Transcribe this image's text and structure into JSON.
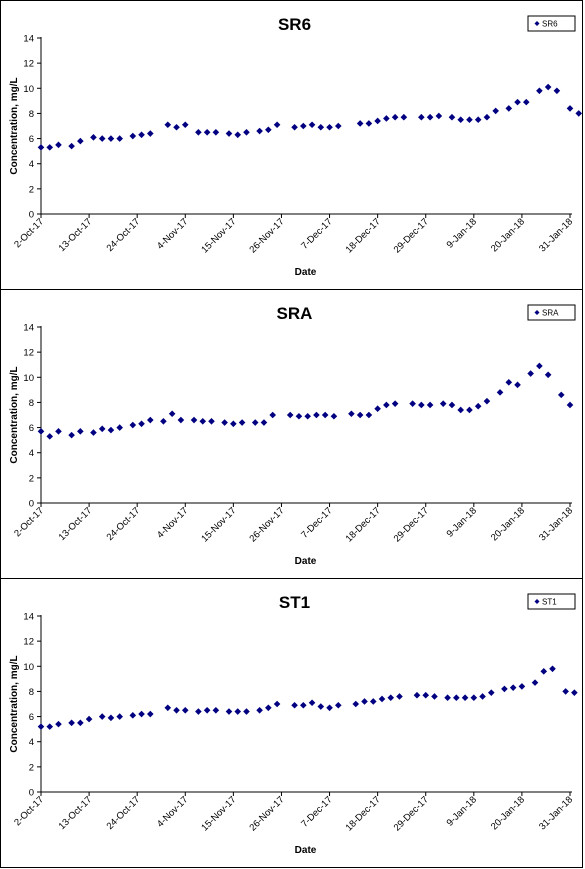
{
  "chart_data": [
    {
      "type": "scatter",
      "title": "SR6",
      "xlabel": "Date",
      "ylabel": "Concentration, mg/L",
      "ylim": [
        0,
        14
      ],
      "yticks": [
        0,
        2,
        4,
        6,
        8,
        10,
        12,
        14
      ],
      "xlim": [
        "2017-10-02",
        "2018-01-31"
      ],
      "xticks": [
        "2-Oct-17",
        "13-Oct-17",
        "24-Oct-17",
        "4-Nov-17",
        "15-Nov-17",
        "26-Nov-17",
        "7-Dec-17",
        "18-Dec-17",
        "29-Dec-17",
        "9-Jan-18",
        "20-Jan-18",
        "31-Jan-18"
      ],
      "grid": false,
      "legend": "top-right",
      "marker": "diamond",
      "color": "#000080",
      "series": [
        {
          "name": "SR6",
          "points": [
            [
              "2017-10-02",
              5.3
            ],
            [
              "2017-10-04",
              5.3
            ],
            [
              "2017-10-06",
              5.5
            ],
            [
              "2017-10-09",
              5.4
            ],
            [
              "2017-10-11",
              5.8
            ],
            [
              "2017-10-14",
              6.1
            ],
            [
              "2017-10-16",
              6.0
            ],
            [
              "2017-10-18",
              6.0
            ],
            [
              "2017-10-20",
              6.0
            ],
            [
              "2017-10-23",
              6.2
            ],
            [
              "2017-10-25",
              6.3
            ],
            [
              "2017-10-27",
              6.4
            ],
            [
              "2017-10-31",
              7.1
            ],
            [
              "2017-11-02",
              6.9
            ],
            [
              "2017-11-04",
              7.1
            ],
            [
              "2017-11-07",
              6.5
            ],
            [
              "2017-11-09",
              6.5
            ],
            [
              "2017-11-11",
              6.5
            ],
            [
              "2017-11-14",
              6.4
            ],
            [
              "2017-11-16",
              6.3
            ],
            [
              "2017-11-18",
              6.5
            ],
            [
              "2017-11-21",
              6.6
            ],
            [
              "2017-11-23",
              6.7
            ],
            [
              "2017-11-25",
              7.1
            ],
            [
              "2017-11-29",
              6.9
            ],
            [
              "2017-12-01",
              7.0
            ],
            [
              "2017-12-03",
              7.1
            ],
            [
              "2017-12-05",
              6.9
            ],
            [
              "2017-12-07",
              6.9
            ],
            [
              "2017-12-09",
              7.0
            ],
            [
              "2017-12-14",
              7.2
            ],
            [
              "2017-12-16",
              7.2
            ],
            [
              "2017-12-18",
              7.4
            ],
            [
              "2017-12-20",
              7.6
            ],
            [
              "2017-12-22",
              7.7
            ],
            [
              "2017-12-24",
              7.7
            ],
            [
              "2017-12-28",
              7.7
            ],
            [
              "2017-12-30",
              7.7
            ],
            [
              "2018-01-01",
              7.8
            ],
            [
              "2018-01-04",
              7.7
            ],
            [
              "2018-01-06",
              7.5
            ],
            [
              "2018-01-08",
              7.5
            ],
            [
              "2018-01-10",
              7.5
            ],
            [
              "2018-01-12",
              7.7
            ],
            [
              "2018-01-14",
              8.2
            ],
            [
              "2018-01-17",
              8.4
            ],
            [
              "2018-01-19",
              8.9
            ],
            [
              "2018-01-21",
              8.9
            ],
            [
              "2018-01-24",
              9.8
            ],
            [
              "2018-01-26",
              10.1
            ],
            [
              "2018-01-28",
              9.8
            ],
            [
              "2018-01-31",
              8.4
            ],
            [
              "2018-02-02",
              8.0
            ]
          ]
        }
      ]
    },
    {
      "type": "scatter",
      "title": "SRA",
      "xlabel": "Date",
      "ylabel": "Concentration, mg/L",
      "ylim": [
        0,
        14
      ],
      "yticks": [
        0,
        2,
        4,
        6,
        8,
        10,
        12,
        14
      ],
      "xlim": [
        "2017-10-02",
        "2018-01-31"
      ],
      "xticks": [
        "2-Oct-17",
        "13-Oct-17",
        "24-Oct-17",
        "4-Nov-17",
        "15-Nov-17",
        "26-Nov-17",
        "7-Dec-17",
        "18-Dec-17",
        "29-Dec-17",
        "9-Jan-18",
        "20-Jan-18",
        "31-Jan-18"
      ],
      "grid": false,
      "legend": "top-right",
      "marker": "diamond",
      "color": "#000080",
      "series": [
        {
          "name": "SRA",
          "points": [
            [
              "2017-10-02",
              5.7
            ],
            [
              "2017-10-04",
              5.3
            ],
            [
              "2017-10-06",
              5.7
            ],
            [
              "2017-10-09",
              5.4
            ],
            [
              "2017-10-11",
              5.7
            ],
            [
              "2017-10-14",
              5.6
            ],
            [
              "2017-10-16",
              5.9
            ],
            [
              "2017-10-18",
              5.8
            ],
            [
              "2017-10-20",
              6.0
            ],
            [
              "2017-10-23",
              6.2
            ],
            [
              "2017-10-25",
              6.3
            ],
            [
              "2017-10-27",
              6.6
            ],
            [
              "2017-10-30",
              6.5
            ],
            [
              "2017-11-01",
              7.1
            ],
            [
              "2017-11-03",
              6.6
            ],
            [
              "2017-11-06",
              6.6
            ],
            [
              "2017-11-08",
              6.5
            ],
            [
              "2017-11-10",
              6.5
            ],
            [
              "2017-11-13",
              6.4
            ],
            [
              "2017-11-15",
              6.3
            ],
            [
              "2017-11-17",
              6.4
            ],
            [
              "2017-11-20",
              6.4
            ],
            [
              "2017-11-22",
              6.4
            ],
            [
              "2017-11-24",
              7.0
            ],
            [
              "2017-11-28",
              7.0
            ],
            [
              "2017-11-30",
              6.9
            ],
            [
              "2017-12-02",
              6.9
            ],
            [
              "2017-12-04",
              7.0
            ],
            [
              "2017-12-06",
              7.0
            ],
            [
              "2017-12-08",
              6.9
            ],
            [
              "2017-12-12",
              7.1
            ],
            [
              "2017-12-14",
              7.0
            ],
            [
              "2017-12-16",
              7.0
            ],
            [
              "2017-12-18",
              7.5
            ],
            [
              "2017-12-20",
              7.8
            ],
            [
              "2017-12-22",
              7.9
            ],
            [
              "2017-12-26",
              7.9
            ],
            [
              "2017-12-28",
              7.8
            ],
            [
              "2017-12-30",
              7.8
            ],
            [
              "2018-01-02",
              7.9
            ],
            [
              "2018-01-04",
              7.8
            ],
            [
              "2018-01-06",
              7.4
            ],
            [
              "2018-01-08",
              7.4
            ],
            [
              "2018-01-10",
              7.7
            ],
            [
              "2018-01-12",
              8.1
            ],
            [
              "2018-01-15",
              8.8
            ],
            [
              "2018-01-17",
              9.6
            ],
            [
              "2018-01-19",
              9.4
            ],
            [
              "2018-01-22",
              10.3
            ],
            [
              "2018-01-24",
              10.9
            ],
            [
              "2018-01-26",
              10.2
            ],
            [
              "2018-01-29",
              8.6
            ],
            [
              "2018-01-31",
              7.8
            ]
          ]
        }
      ]
    },
    {
      "type": "scatter",
      "title": "ST1",
      "xlabel": "Date",
      "ylabel": "Concentration, mg/L",
      "ylim": [
        0,
        14
      ],
      "yticks": [
        0,
        2,
        4,
        6,
        8,
        10,
        12,
        14
      ],
      "xlim": [
        "2017-10-02",
        "2018-01-31"
      ],
      "xticks": [
        "2-Oct-17",
        "13-Oct-17",
        "24-Oct-17",
        "4-Nov-17",
        "15-Nov-17",
        "26-Nov-17",
        "7-Dec-17",
        "18-Dec-17",
        "29-Dec-17",
        "9-Jan-18",
        "20-Jan-18",
        "31-Jan-18"
      ],
      "grid": false,
      "legend": "top-right",
      "marker": "diamond",
      "color": "#000080",
      "series": [
        {
          "name": "ST1",
          "points": [
            [
              "2017-10-02",
              5.2
            ],
            [
              "2017-10-04",
              5.2
            ],
            [
              "2017-10-06",
              5.4
            ],
            [
              "2017-10-09",
              5.5
            ],
            [
              "2017-10-11",
              5.5
            ],
            [
              "2017-10-13",
              5.8
            ],
            [
              "2017-10-16",
              6.0
            ],
            [
              "2017-10-18",
              5.9
            ],
            [
              "2017-10-20",
              6.0
            ],
            [
              "2017-10-23",
              6.1
            ],
            [
              "2017-10-25",
              6.2
            ],
            [
              "2017-10-27",
              6.2
            ],
            [
              "2017-10-31",
              6.7
            ],
            [
              "2017-11-02",
              6.5
            ],
            [
              "2017-11-04",
              6.5
            ],
            [
              "2017-11-07",
              6.4
            ],
            [
              "2017-11-09",
              6.5
            ],
            [
              "2017-11-11",
              6.5
            ],
            [
              "2017-11-14",
              6.4
            ],
            [
              "2017-11-16",
              6.4
            ],
            [
              "2017-11-18",
              6.4
            ],
            [
              "2017-11-21",
              6.5
            ],
            [
              "2017-11-23",
              6.7
            ],
            [
              "2017-11-25",
              7.0
            ],
            [
              "2017-11-29",
              6.9
            ],
            [
              "2017-12-01",
              6.9
            ],
            [
              "2017-12-03",
              7.1
            ],
            [
              "2017-12-05",
              6.8
            ],
            [
              "2017-12-07",
              6.7
            ],
            [
              "2017-12-09",
              6.9
            ],
            [
              "2017-12-13",
              7.0
            ],
            [
              "2017-12-15",
              7.2
            ],
            [
              "2017-12-17",
              7.2
            ],
            [
              "2017-12-19",
              7.4
            ],
            [
              "2017-12-21",
              7.5
            ],
            [
              "2017-12-23",
              7.6
            ],
            [
              "2017-12-27",
              7.7
            ],
            [
              "2017-12-29",
              7.7
            ],
            [
              "2017-12-31",
              7.6
            ],
            [
              "2018-01-03",
              7.5
            ],
            [
              "2018-01-05",
              7.5
            ],
            [
              "2018-01-07",
              7.5
            ],
            [
              "2018-01-09",
              7.5
            ],
            [
              "2018-01-11",
              7.6
            ],
            [
              "2018-01-13",
              7.9
            ],
            [
              "2018-01-16",
              8.2
            ],
            [
              "2018-01-18",
              8.3
            ],
            [
              "2018-01-20",
              8.4
            ],
            [
              "2018-01-23",
              8.7
            ],
            [
              "2018-01-25",
              9.6
            ],
            [
              "2018-01-27",
              9.8
            ],
            [
              "2018-01-30",
              8.0
            ],
            [
              "2018-02-01",
              7.9
            ]
          ]
        }
      ]
    }
  ]
}
